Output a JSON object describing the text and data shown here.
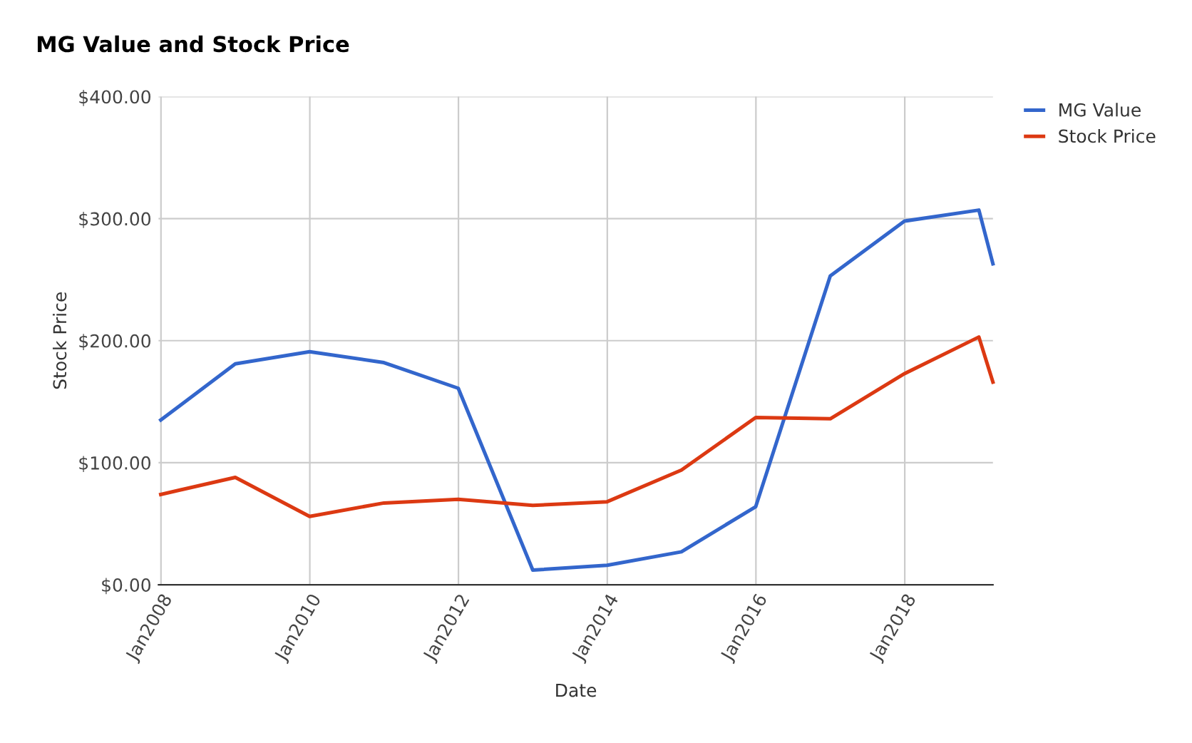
{
  "chart_data": {
    "type": "line",
    "title": "MG Value and Stock Price",
    "xlabel": "Date",
    "ylabel": "Stock Price",
    "x": [
      "2007-12-31",
      "2008-12-31",
      "2009-12-31",
      "2010-12-31",
      "2011-12-31",
      "2012-12-31",
      "2013-12-31",
      "2014-12-31",
      "2015-12-31",
      "2016-12-31",
      "2017-12-31",
      "2018-12-31",
      "2019-03-10"
    ],
    "series": [
      {
        "name": "MG Value",
        "color": "#3366cc",
        "values": [
          135,
          181,
          191,
          182,
          161,
          12,
          16,
          27,
          64,
          253,
          298,
          307,
          263
        ]
      },
      {
        "name": "Stock Price",
        "color": "#dc3912",
        "values": [
          74,
          88,
          56,
          67,
          70,
          65,
          68,
          94,
          137,
          136,
          173,
          203,
          166
        ]
      }
    ],
    "xlim": [
      "2007-12-20",
      "2019-03-10"
    ],
    "xticks": [
      {
        "value": "2008-01-01",
        "label": "Jan2008"
      },
      {
        "value": "2010-01-01",
        "label": "Jan2010"
      },
      {
        "value": "2012-01-01",
        "label": "Jan2012"
      },
      {
        "value": "2014-01-01",
        "label": "Jan2014"
      },
      {
        "value": "2016-01-01",
        "label": "Jan2016"
      },
      {
        "value": "2018-01-01",
        "label": "Jan2018"
      }
    ],
    "ylim": [
      0,
      400
    ],
    "yticks": [
      {
        "value": 0,
        "label": "$0.00"
      },
      {
        "value": 100,
        "label": "$100.00"
      },
      {
        "value": 200,
        "label": "$200.00"
      },
      {
        "value": 300,
        "label": "$300.00"
      },
      {
        "value": 400,
        "label": "$400.00"
      }
    ],
    "grid": true,
    "legend": "top right",
    "marker": "none",
    "line_style": "solid"
  }
}
